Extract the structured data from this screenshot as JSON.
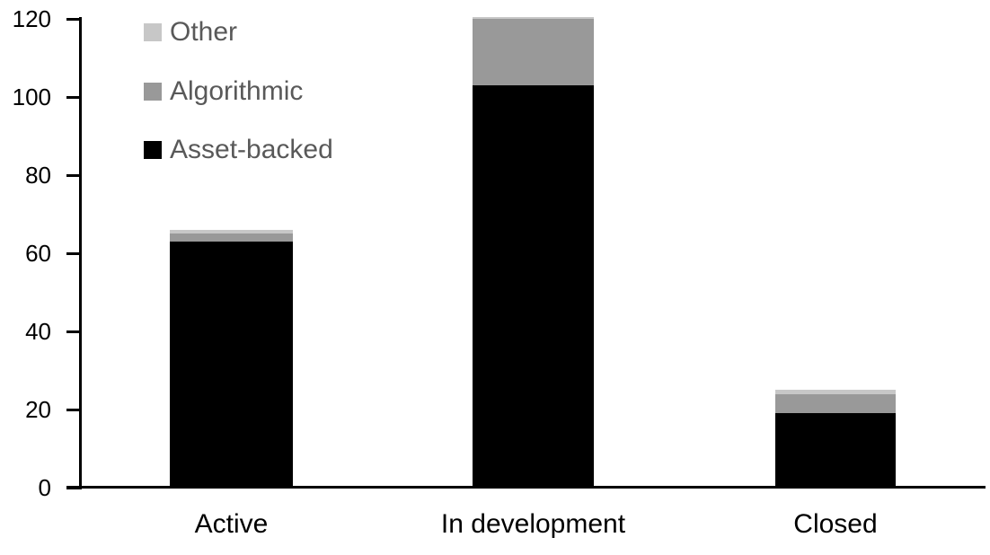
{
  "chart_data": {
    "type": "bar",
    "stacked": true,
    "title": "",
    "categories": [
      "Active",
      "In development",
      "Closed"
    ],
    "series": [
      {
        "name": "Asset-backed",
        "color": "#000000",
        "values": [
          63,
          103,
          19
        ]
      },
      {
        "name": "Algorithmic",
        "color": "#999999",
        "values": [
          2,
          17,
          5
        ]
      },
      {
        "name": "Other",
        "color": "#C7C7C7",
        "values": [
          1,
          0.5,
          1
        ]
      }
    ],
    "stack_order": "bottom-to-top as listed",
    "totals": [
      66,
      120.5,
      25
    ],
    "y_axis": {
      "ticks": [
        0,
        20,
        40,
        60,
        80,
        100,
        120
      ],
      "range": [
        0,
        120
      ],
      "label_color": "#000000"
    },
    "x_axis": {
      "label_color": "#000000"
    },
    "grid": false,
    "legend": {
      "position": "top-left-inside",
      "entries": [
        "Other",
        "Algorithmic",
        "Asset-backed"
      ],
      "text_color": "#595959"
    },
    "axis_color": "#000000",
    "background_color": "#FFFFFF"
  }
}
